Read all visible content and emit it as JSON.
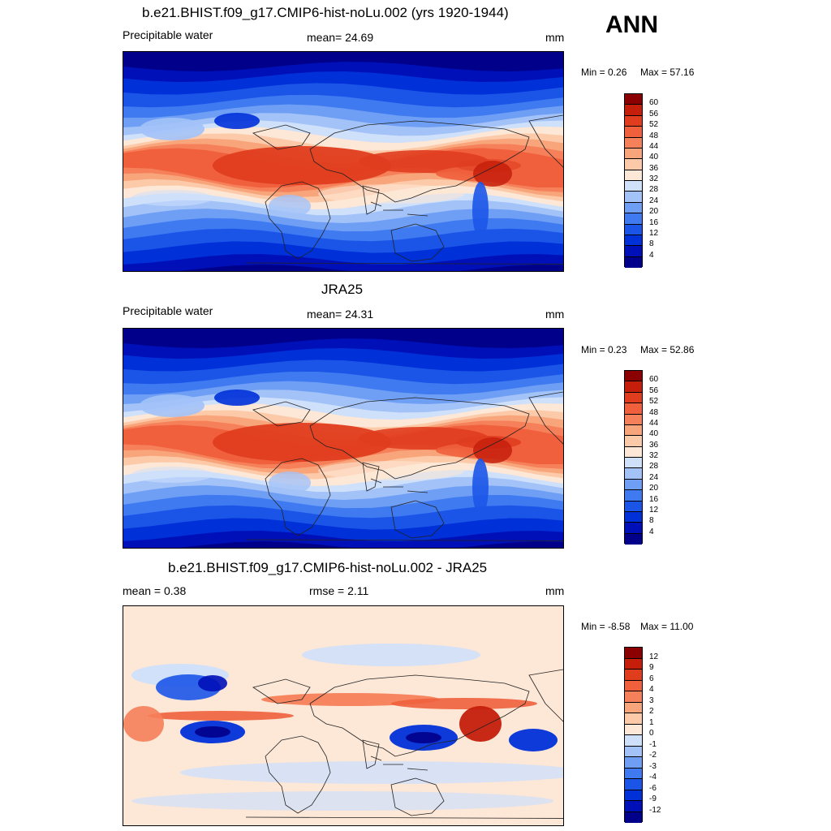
{
  "season": "ANN",
  "colors": {
    "abs_scale": [
      "#00008a",
      "#0010b8",
      "#0030d8",
      "#1b55e8",
      "#3f7af0",
      "#6f9ff5",
      "#a2c2f8",
      "#cfe0fb",
      "#fde7d6",
      "#fccaa8",
      "#f9a57c",
      "#f5805a",
      "#f0603d",
      "#e03d1f",
      "#c51f0c",
      "#8b0000"
    ],
    "diff_scale": [
      "#00008a",
      "#0010b8",
      "#0030d8",
      "#1b55e8",
      "#3f7af0",
      "#6f9ff5",
      "#a2c2f8",
      "#cfe0fb",
      "#fde7d6",
      "#fccaa8",
      "#f9a57c",
      "#f5805a",
      "#f0603d",
      "#e03d1f",
      "#c51f0c",
      "#8b0000"
    ]
  },
  "panels": [
    {
      "title": "b.e21.BHIST.f09_g17.CMIP6-hist-noLu.002 (yrs 1920-1944)",
      "left_label": "Precipitable water",
      "center_label": "mean=  24.69",
      "units": "mm",
      "min": "Min =   0.26",
      "max": "Max =  57.16",
      "ticks": [
        "60",
        "56",
        "52",
        "48",
        "44",
        "40",
        "36",
        "32",
        "28",
        "24",
        "20",
        "16",
        "12",
        "8",
        "4"
      ],
      "kind": "abs"
    },
    {
      "title": "JRA25",
      "left_label": "Precipitable water",
      "center_label": "mean=  24.31",
      "units": "mm",
      "min": "Min =   0.23",
      "max": "Max =  52.86",
      "ticks": [
        "60",
        "56",
        "52",
        "48",
        "44",
        "40",
        "36",
        "32",
        "28",
        "24",
        "20",
        "16",
        "12",
        "8",
        "4"
      ],
      "kind": "abs"
    },
    {
      "title": "b.e21.BHIST.f09_g17.CMIP6-hist-noLu.002 - JRA25",
      "left_label": "mean =   0.38",
      "center_label": "rmse =   2.11",
      "units": "mm",
      "min": "Min =  -8.58",
      "max": "Max =  11.00",
      "ticks": [
        "12",
        "9",
        "6",
        "4",
        "3",
        "2",
        "1",
        "0",
        "-1",
        "-2",
        "-3",
        "-4",
        "-6",
        "-9",
        "-12"
      ],
      "kind": "diff"
    }
  ]
}
